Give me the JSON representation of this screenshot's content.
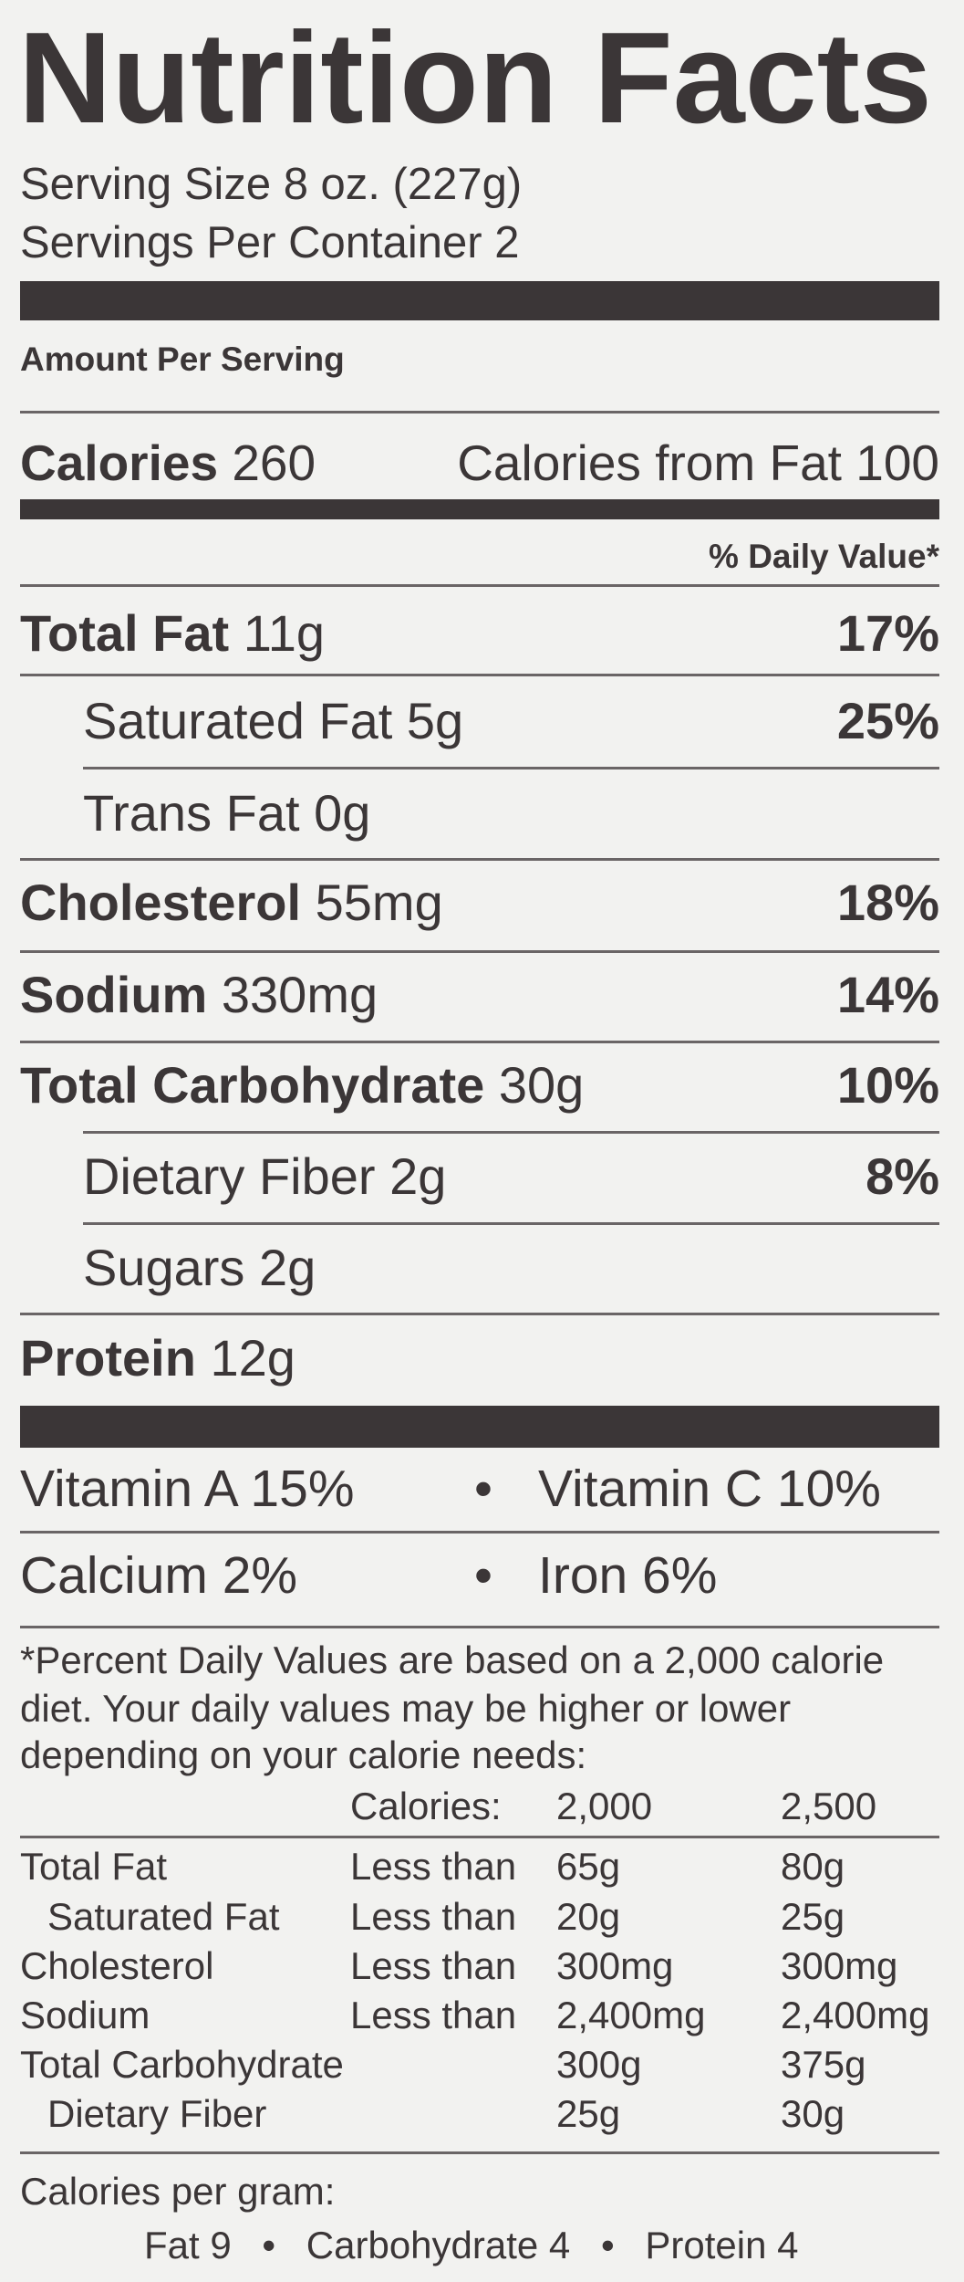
{
  "title": "Nutrition Facts",
  "serving_size": "Serving Size 8 oz. (227g)",
  "servings_per_container": "Servings Per Container 2",
  "amount_per_serving": "Amount Per Serving",
  "calories": {
    "label": "Calories",
    "value": "260",
    "from_fat": "Calories from Fat 100"
  },
  "daily_value_header": "% Daily Value*",
  "nutrients": [
    {
      "name": "Total Fat",
      "amount": "11g",
      "dv": "17%",
      "bold": true,
      "indent": false
    },
    {
      "name": "Saturated Fat",
      "amount": "5g",
      "dv": "25%",
      "bold": false,
      "indent": true
    },
    {
      "name": "Trans Fat",
      "amount": "0g",
      "dv": "",
      "bold": false,
      "indent": true
    },
    {
      "name": "Cholesterol",
      "amount": "55mg",
      "dv": "18%",
      "bold": true,
      "indent": false
    },
    {
      "name": "Sodium",
      "amount": "330mg",
      "dv": "14%",
      "bold": true,
      "indent": false
    },
    {
      "name": "Total Carbohydrate",
      "amount": "30g",
      "dv": "10%",
      "bold": true,
      "indent": false
    },
    {
      "name": "Dietary Fiber",
      "amount": "2g",
      "dv": "8%",
      "bold": false,
      "indent": true
    },
    {
      "name": "Sugars",
      "amount": "2g",
      "dv": "",
      "bold": false,
      "indent": true
    },
    {
      "name": "Protein",
      "amount": "12g",
      "dv": "",
      "bold": true,
      "indent": false
    }
  ],
  "vitamins": [
    [
      "Vitamin A 15%",
      "Vitamin C 10%"
    ],
    [
      "Calcium 2%",
      "Iron 6%"
    ]
  ],
  "bullet": "•",
  "footnote": [
    "*Percent Daily Values are based on a 2,000 calorie",
    "diet. Your daily values may be higher or lower",
    "depending on your calorie needs:"
  ],
  "dv_table": {
    "header": [
      "",
      "Calories:",
      "2,000",
      "2,500"
    ],
    "rows": [
      [
        "Total Fat",
        "Less than",
        "65g",
        "80g"
      ],
      [
        "Saturated Fat",
        "Less than",
        "20g",
        "25g"
      ],
      [
        "Cholesterol",
        "Less than",
        "300mg",
        "300mg"
      ],
      [
        "Sodium",
        "Less than",
        "2,400mg",
        "2,400mg"
      ],
      [
        "Total Carbohydrate",
        "",
        "300g",
        "375g"
      ],
      [
        "Dietary Fiber",
        "",
        "25g",
        "30g"
      ]
    ]
  },
  "calories_per_gram": {
    "label": "Calories per gram:",
    "values": [
      "Fat 9",
      "Carbohydrate 4",
      "Protein 4"
    ]
  },
  "colors": {
    "text": "#3b3637",
    "background": "#f2f2f0"
  }
}
